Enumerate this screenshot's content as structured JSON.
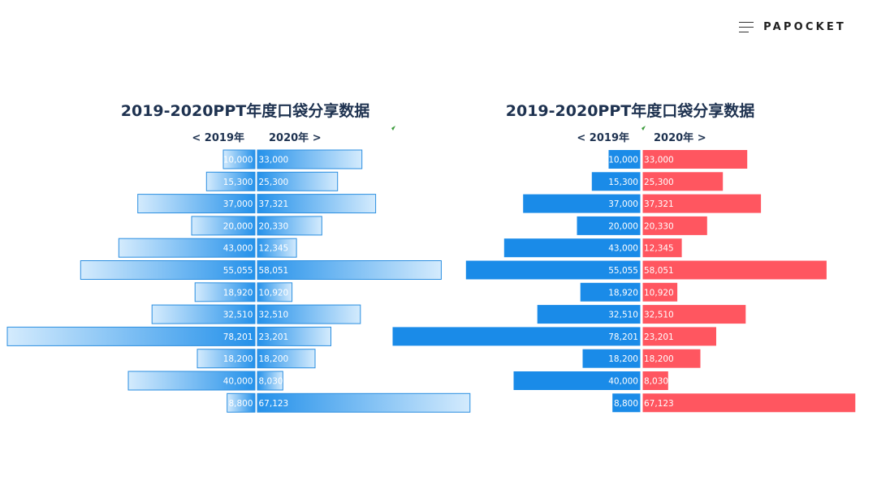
{
  "brand": {
    "text": "PAPOCKET",
    "icon": "menu-icon"
  },
  "colors": {
    "left_solid": "#1a8be8",
    "right_solid": "#ff5660",
    "gradient_dark": "#2491ea",
    "gradient_light": "#d4ebfd",
    "bar_border": "#2a8ee0",
    "title": "#1e3250"
  },
  "chart_data": [
    {
      "type": "bar",
      "style": "gradient",
      "title": "2019-2020PPT年度口袋分享数据",
      "left_label": "< 2019年",
      "right_label": "2020年 >",
      "series": [
        {
          "name": "2019",
          "values": [
            10000,
            15300,
            37000,
            20000,
            43000,
            55055,
            18920,
            32510,
            78201,
            18200,
            40000,
            8800
          ],
          "labels": [
            "10,000",
            "15,300",
            "37,000",
            "20,000",
            "43,000",
            "55,055",
            "18,920",
            "32,510",
            "78,201",
            "18,200",
            "40,000",
            "8,800"
          ]
        },
        {
          "name": "2020",
          "values": [
            33000,
            25300,
            37321,
            20330,
            12345,
            58051,
            10920,
            32510,
            23201,
            18200,
            8030,
            67123
          ],
          "labels": [
            "33,000",
            "25,300",
            "37,321",
            "20,330",
            "12,345",
            "58,051",
            "10,920",
            "32,510",
            "23,201",
            "18,200",
            "8,030",
            "67,123"
          ]
        }
      ]
    },
    {
      "type": "bar",
      "style": "solid",
      "title": "2019-2020PPT年度口袋分享数据",
      "left_label": "< 2019年",
      "right_label": "2020年 >",
      "series": [
        {
          "name": "2019",
          "values": [
            10000,
            15300,
            37000,
            20000,
            43000,
            55055,
            18920,
            32510,
            78201,
            18200,
            40000,
            8800
          ],
          "labels": [
            "10,000",
            "15,300",
            "37,000",
            "20,000",
            "43,000",
            "55,055",
            "18,920",
            "32,510",
            "78,201",
            "18,200",
            "40,000",
            "8,800"
          ]
        },
        {
          "name": "2020",
          "values": [
            33000,
            25300,
            37321,
            20330,
            12345,
            58051,
            10920,
            32510,
            23201,
            18200,
            8030,
            67123
          ],
          "labels": [
            "33,000",
            "25,300",
            "37,321",
            "20,330",
            "12,345",
            "58,051",
            "10,920",
            "32,510",
            "23,201",
            "18,200",
            "8,030",
            "67,123"
          ]
        }
      ]
    }
  ]
}
